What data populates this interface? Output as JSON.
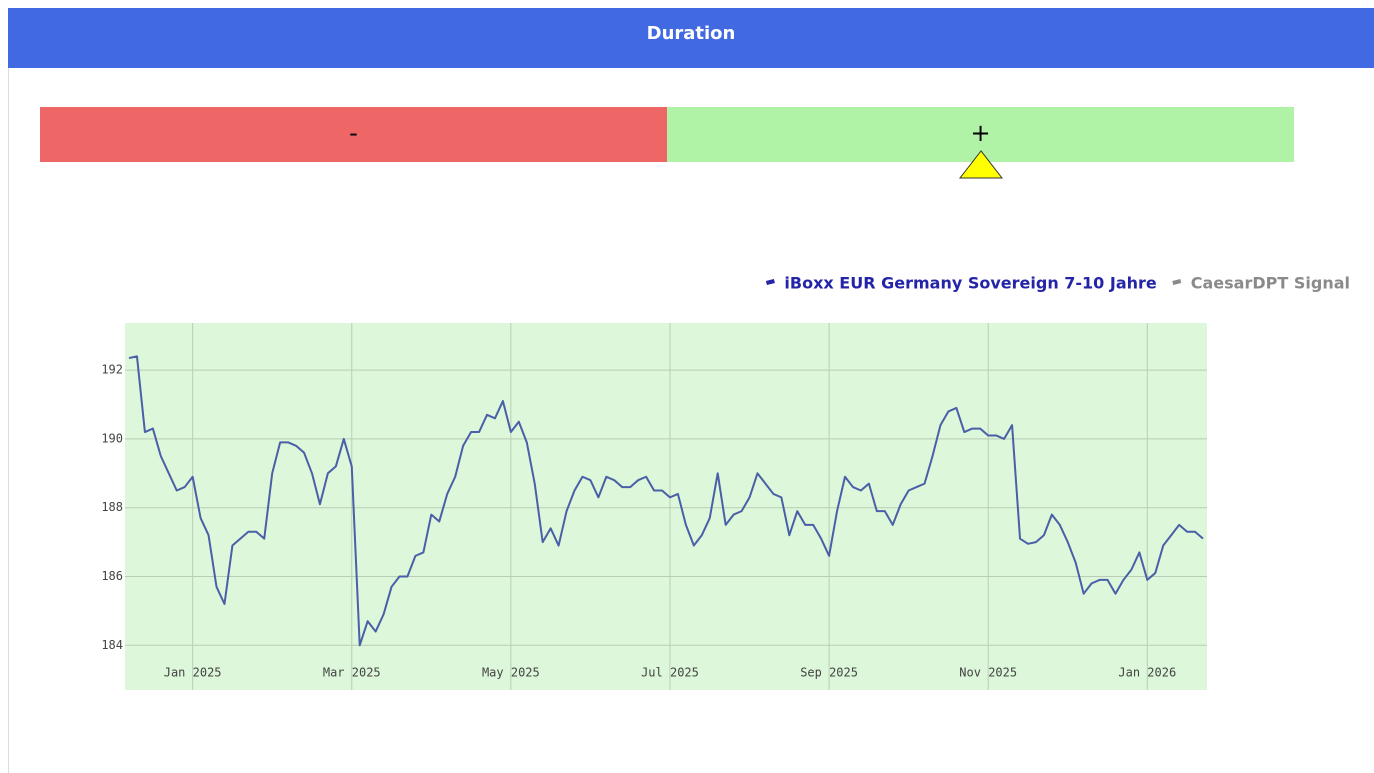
{
  "header": {
    "title": "Duration"
  },
  "signal": {
    "negative": "-",
    "positive": "+"
  },
  "chart_data": {
    "type": "line",
    "categories": [
      null,
      null,
      null,
      null,
      null,
      null,
      null,
      null,
      "Jan 2025",
      null,
      null,
      null,
      null,
      null,
      null,
      null,
      null,
      null,
      null,
      null,
      null,
      null,
      null,
      null,
      null,
      null,
      null,
      null,
      "Mar 2025",
      null,
      null,
      null,
      null,
      null,
      null,
      null,
      null,
      null,
      null,
      null,
      null,
      null,
      null,
      null,
      null,
      null,
      null,
      null,
      "May 2025",
      null,
      null,
      null,
      null,
      null,
      null,
      null,
      null,
      null,
      null,
      null,
      null,
      null,
      null,
      null,
      null,
      null,
      null,
      null,
      "Jul 2025",
      null,
      null,
      null,
      null,
      null,
      null,
      null,
      null,
      null,
      null,
      null,
      null,
      null,
      null,
      null,
      null,
      null,
      null,
      null,
      "Sep 2025",
      null,
      null,
      null,
      null,
      null,
      null,
      null,
      null,
      null,
      null,
      null,
      null,
      null,
      null,
      null,
      null,
      null,
      null,
      null,
      "Nov 2025",
      null,
      null,
      null,
      null,
      null,
      null,
      null,
      null,
      null,
      null,
      null,
      null,
      null,
      null,
      null,
      null,
      null,
      null,
      null,
      "Jan 2026",
      null,
      null,
      null,
      null,
      null,
      null,
      null
    ],
    "series": [
      {
        "name": "iBoxx EUR Germany Sovereign 7-10 Jahre",
        "color": "#4a5fa8",
        "legend_color": "#2424a8",
        "values": [
          192.35,
          192.4,
          190.2,
          190.3,
          189.5,
          189.0,
          188.5,
          188.6,
          188.9,
          187.7,
          187.2,
          185.7,
          185.2,
          186.9,
          187.1,
          187.3,
          187.3,
          187.1,
          189.0,
          189.9,
          189.9,
          189.8,
          189.6,
          189.0,
          188.1,
          189.0,
          189.2,
          190.0,
          189.2,
          184.0,
          184.7,
          184.4,
          184.9,
          185.7,
          186.0,
          186.0,
          186.6,
          186.7,
          187.8,
          187.6,
          188.4,
          188.9,
          189.8,
          190.2,
          190.2,
          190.7,
          190.6,
          191.1,
          190.2,
          190.5,
          189.9,
          188.7,
          187.0,
          187.4,
          186.9,
          187.9,
          188.5,
          188.9,
          188.8,
          188.3,
          188.9,
          188.8,
          188.6,
          188.6,
          188.8,
          188.9,
          188.5,
          188.5,
          188.3,
          188.4,
          187.5,
          186.9,
          187.2,
          187.7,
          189.0,
          187.5,
          187.8,
          187.9,
          188.3,
          189.0,
          188.7,
          188.4,
          188.3,
          187.2,
          187.9,
          187.5,
          187.5,
          187.1,
          186.6,
          187.9,
          188.9,
          188.6,
          188.5,
          188.7,
          187.9,
          187.9,
          187.5,
          188.1,
          188.5,
          188.6,
          188.7,
          189.5,
          190.4,
          190.8,
          190.9,
          190.2,
          190.3,
          190.3,
          190.1,
          190.1,
          190.0,
          190.4,
          187.1,
          186.95,
          187.0,
          187.2,
          187.8,
          187.5,
          187.0,
          186.4,
          185.5,
          185.8,
          185.9,
          185.9,
          185.5,
          185.9,
          186.2,
          186.7,
          185.9,
          186.1,
          186.9,
          187.2,
          187.5,
          187.3,
          187.3,
          187.1
        ]
      },
      {
        "name": "CaesarDPT Signal",
        "color": "#8a8a8a",
        "legend_color": "#8a8a8a"
      }
    ],
    "ylim": [
      182.7,
      193.37
    ],
    "yticks": [
      184,
      186,
      188,
      190,
      192
    ],
    "grid": true,
    "background": "#dcf7d9"
  }
}
